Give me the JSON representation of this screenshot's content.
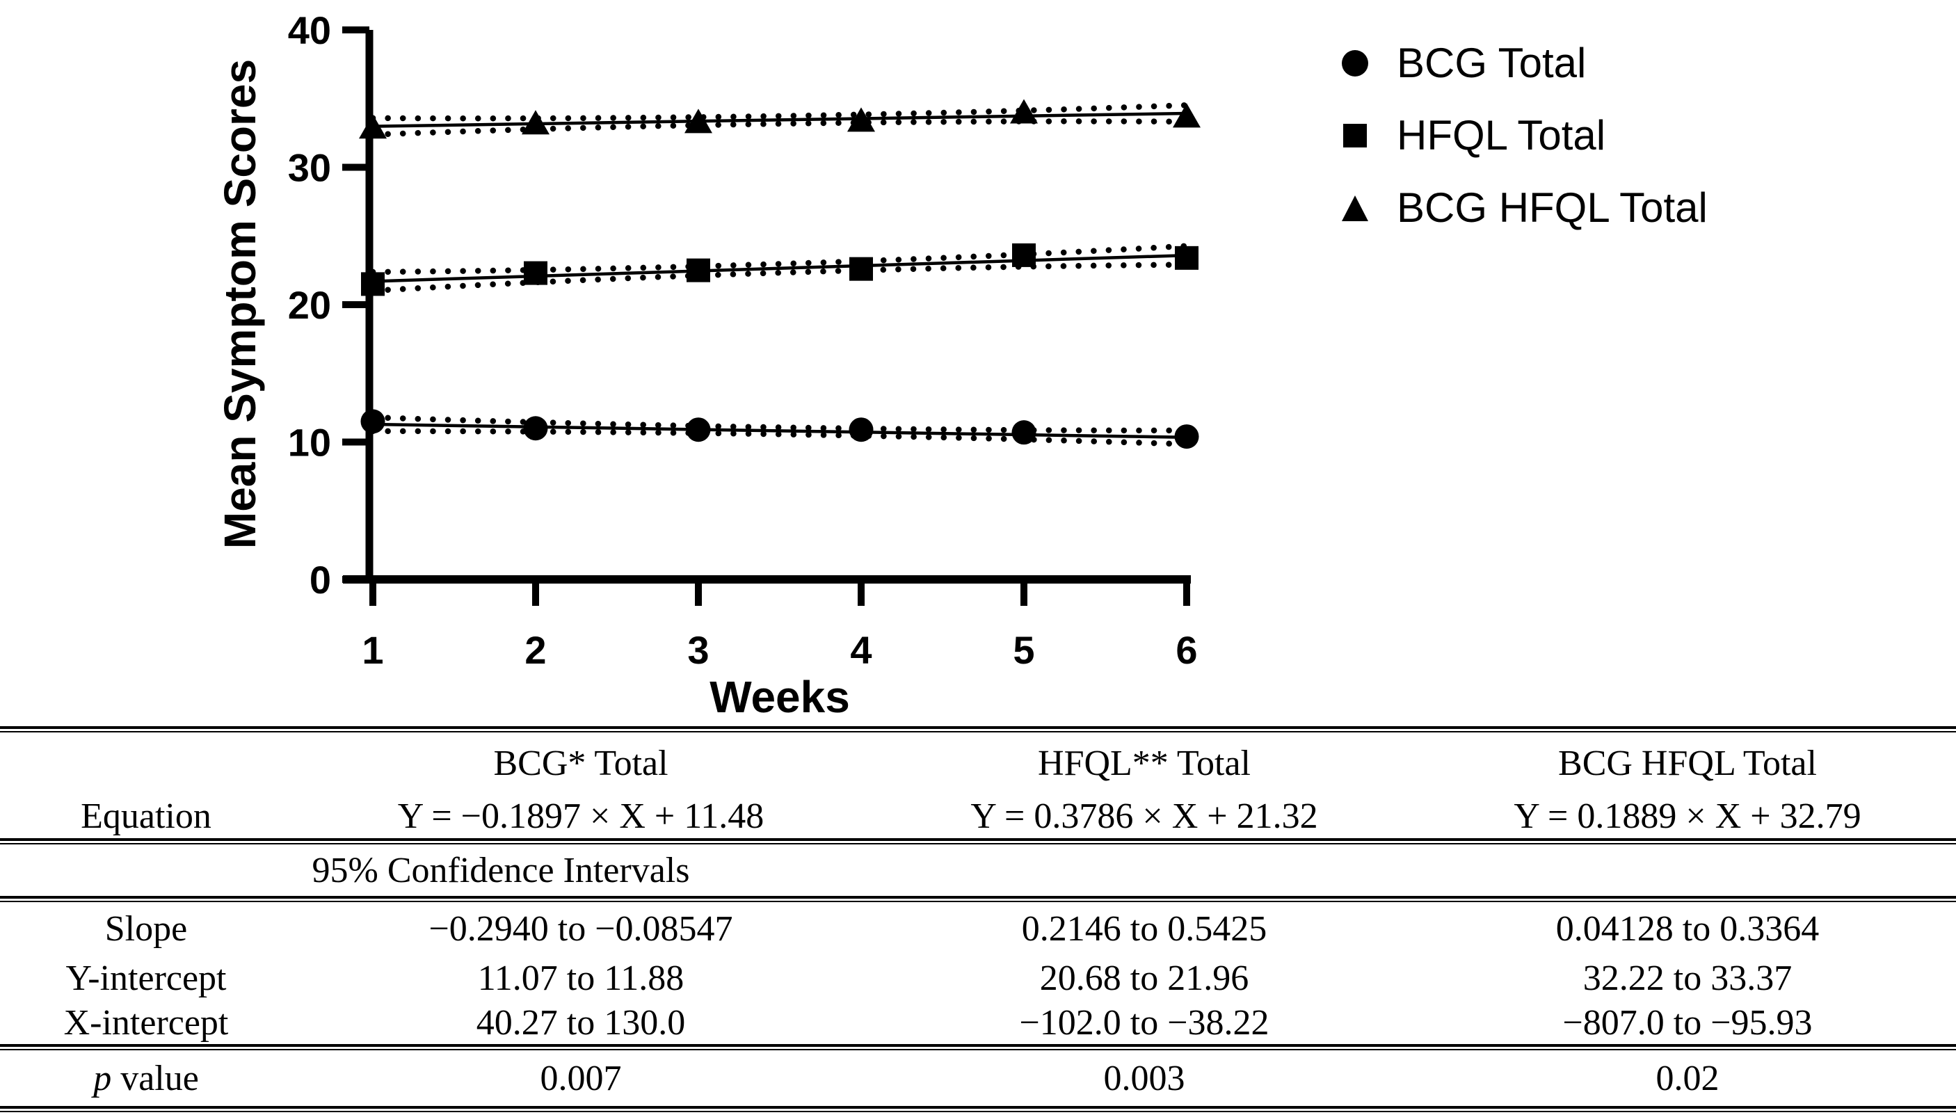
{
  "chart_data": {
    "type": "scatter",
    "title": "",
    "x": [
      1,
      2,
      3,
      4,
      5,
      6
    ],
    "xlabel": "Weeks",
    "ylabel": "Mean Symptom Scores",
    "xlim": [
      1,
      6
    ],
    "ylim": [
      0,
      40
    ],
    "xticks": [
      1,
      2,
      3,
      4,
      5,
      6
    ],
    "yticks": [
      0,
      10,
      20,
      30,
      40
    ],
    "grid": false,
    "legend_position": "top-right",
    "series": [
      {
        "name": "BCG Total",
        "marker": "circle",
        "values": [
          11.5,
          11.0,
          10.9,
          10.9,
          10.7,
          10.4
        ],
        "fit_slope": -0.1897,
        "fit_intercept": 11.48,
        "ci_style": "dotted",
        "band_halfwidth_mid": 0.25,
        "band_halfwidth_end": 0.5
      },
      {
        "name": "HFQL Total",
        "marker": "square",
        "values": [
          21.5,
          22.3,
          22.5,
          22.6,
          23.6,
          23.4
        ],
        "fit_slope": 0.3786,
        "fit_intercept": 21.32,
        "ci_style": "dotted",
        "band_halfwidth_mid": 0.32,
        "band_halfwidth_end": 0.68
      },
      {
        "name": "BCG HFQL Total",
        "marker": "triangle",
        "values": [
          32.9,
          33.2,
          33.3,
          33.4,
          34.0,
          33.7
        ],
        "fit_slope": 0.1889,
        "fit_intercept": 32.79,
        "ci_style": "dotted",
        "band_halfwidth_mid": 0.28,
        "band_halfwidth_end": 0.6
      }
    ]
  },
  "legend": {
    "items": [
      {
        "marker": "circle-marker-icon",
        "label": "BCG Total"
      },
      {
        "marker": "square-marker-icon",
        "label": "HFQL Total"
      },
      {
        "marker": "triangle-marker-icon",
        "label": "BCG HFQL Total"
      }
    ]
  },
  "table": {
    "header": [
      "",
      "BCG* Total",
      "HFQL** Total",
      "BCG HFQL Total"
    ],
    "equation_row": {
      "label": "Equation",
      "values": [
        "Y = −0.1897 × X + 11.48",
        "Y = 0.3786 × X + 21.32",
        "Y = 0.1889 × X + 32.79"
      ]
    },
    "section_header": "95% Confidence Intervals",
    "ci_rows": [
      {
        "label": "Slope",
        "values": [
          "−0.2940 to −0.08547",
          "0.2146 to 0.5425",
          "0.04128 to 0.3364"
        ]
      },
      {
        "label": "Y-intercept",
        "values": [
          "11.07 to 11.88",
          "20.68 to 21.96",
          "32.22 to 33.37"
        ]
      },
      {
        "label": "X-intercept",
        "values": [
          "40.27 to 130.0",
          "−102.0 to −38.22",
          "−807.0 to −95.93"
        ]
      }
    ],
    "p_row": {
      "label_italic": "p",
      "label_rest": " value",
      "values": [
        "0.007",
        "0.003",
        "0.02"
      ]
    }
  },
  "colors": {
    "ink": "#000000",
    "background": "#ffffff"
  }
}
